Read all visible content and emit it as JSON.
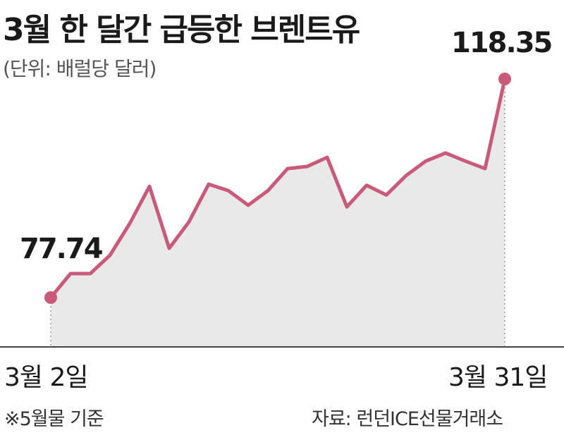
{
  "title": "3월 한 달간 급등한 브렌트유",
  "unit_note": "(단위: 배럴당 달러)",
  "footnote": "※5월물 기준",
  "source": "자료: 런던ICE선물거래소",
  "colors": {
    "line": "#c95a7a",
    "area": "#e9e9e9",
    "axis": "#444444"
  },
  "chart_data": {
    "type": "area",
    "x_labels": {
      "start": "3월 2일",
      "end": "3월 31일"
    },
    "start_label": "77.74",
    "end_label": "118.35",
    "values": [
      77.74,
      82.2,
      82.2,
      85.6,
      91.5,
      98.4,
      86.9,
      91.8,
      98.8,
      97.6,
      94.9,
      97.6,
      101.7,
      102.1,
      103.8,
      94.6,
      98.6,
      96.8,
      100.4,
      103.1,
      104.6,
      103.1,
      101.7,
      118.35
    ],
    "ylim": [
      70,
      125
    ],
    "grid": false
  }
}
